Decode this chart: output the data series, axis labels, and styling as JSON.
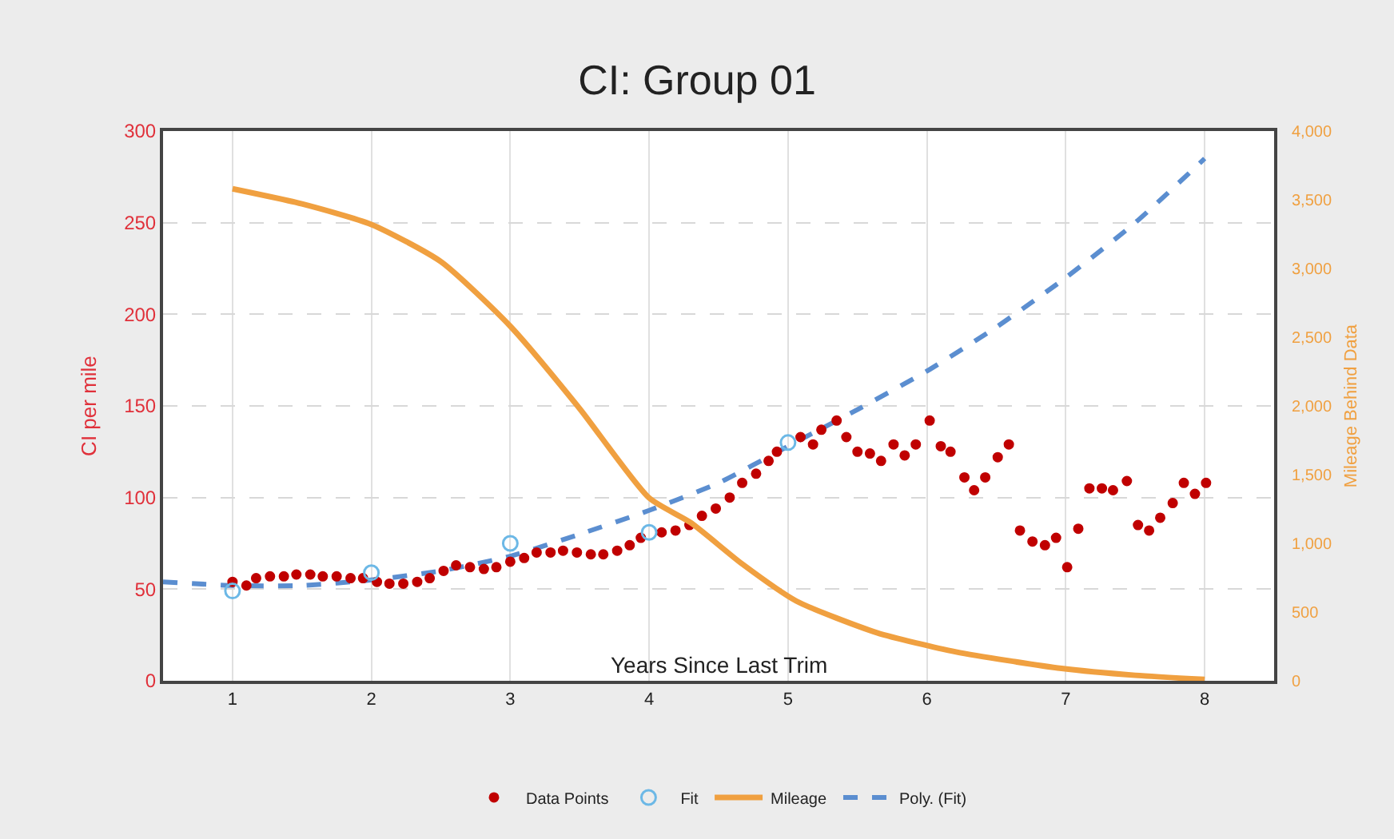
{
  "chart_data": {
    "type": "scatter",
    "title": "CI: Group 01",
    "xlabel": "Years Since Last Trim",
    "ylabel": "CI per mile",
    "y2label": "Mileage Behind Data",
    "xlim": [
      0.5,
      8.5
    ],
    "xticks": [
      1,
      2,
      3,
      4,
      5,
      6,
      7,
      8
    ],
    "ylim": [
      0,
      300
    ],
    "yticks": [
      0,
      50,
      100,
      150,
      200,
      250,
      300
    ],
    "y2lim": [
      0,
      4000
    ],
    "y2ticks": [
      {
        "value": 0,
        "label": "0"
      },
      {
        "value": 500,
        "label": "500"
      },
      {
        "value": 1000,
        "label": "1,000"
      },
      {
        "value": 1500,
        "label": "1,500"
      },
      {
        "value": 2000,
        "label": "2,000"
      },
      {
        "value": 2500,
        "label": "2,500"
      },
      {
        "value": 3000,
        "label": "3,000"
      },
      {
        "value": 3500,
        "label": "3,500"
      },
      {
        "value": 4000,
        "label": "4,000"
      }
    ],
    "grid": true,
    "legend": "bottom",
    "series": [
      {
        "name": "Data Points",
        "marker": "circle",
        "color": "#c00000",
        "x": [
          1.0,
          1.1,
          1.17,
          1.27,
          1.37,
          1.46,
          1.56,
          1.65,
          1.75,
          1.85,
          1.94,
          2.04,
          2.13,
          2.23,
          2.33,
          2.42,
          2.52,
          2.61,
          2.71,
          2.81,
          2.9,
          3.0,
          3.1,
          3.19,
          3.29,
          3.38,
          3.48,
          3.58,
          3.67,
          3.77,
          3.86,
          3.94,
          4.09,
          4.19,
          4.29,
          4.38,
          4.48,
          4.58,
          4.67,
          4.77,
          4.86,
          4.92,
          5.09,
          5.18,
          5.24,
          5.35,
          5.42,
          5.5,
          5.59,
          5.67,
          5.76,
          5.84,
          5.92,
          6.02,
          6.1,
          6.17,
          6.27,
          6.34,
          6.42,
          6.51,
          6.59,
          6.67,
          6.76,
          6.85,
          6.93,
          7.01,
          7.09,
          7.17,
          7.26,
          7.34,
          7.44,
          7.52,
          7.6,
          7.68,
          7.77,
          7.85,
          7.93,
          8.01
        ],
        "values": [
          54,
          52,
          56,
          57,
          57,
          58,
          58,
          57,
          57,
          56,
          56,
          54,
          53,
          53,
          54,
          56,
          60,
          63,
          62,
          61,
          62,
          65,
          67,
          70,
          70,
          71,
          70,
          69,
          69,
          71,
          74,
          78,
          81,
          82,
          85,
          90,
          94,
          100,
          108,
          113,
          120,
          125,
          133,
          129,
          137,
          142,
          133,
          125,
          124,
          120,
          129,
          123,
          129,
          142,
          128,
          125,
          111,
          104,
          111,
          122,
          129,
          82,
          76,
          74,
          78,
          62,
          83,
          105,
          105,
          104,
          109,
          85,
          82,
          89,
          97,
          108,
          102,
          108
        ]
      },
      {
        "name": "Fit",
        "type": "scatter",
        "marker": "open-circle",
        "color": "#6cb8e6",
        "x": [
          1,
          2,
          3,
          4,
          5
        ],
        "values": [
          49,
          59,
          75,
          81,
          130
        ]
      },
      {
        "name": "Mileage",
        "type": "line",
        "axis": "y2",
        "line_style": "solid",
        "color": "#f0a040",
        "x": [
          1,
          1.5,
          2,
          2.5,
          3,
          3.5,
          4,
          4.3,
          4.67,
          5.06,
          5.64,
          6.21,
          6.97,
          7.5,
          8
        ],
        "values": [
          3580,
          3470,
          3320,
          3050,
          2580,
          1980,
          1330,
          1150,
          850,
          580,
          350,
          210,
          90,
          40,
          10
        ]
      },
      {
        "name": "Poly. (Fit)",
        "type": "line",
        "line_style": "dashed",
        "color": "#5b8ed0",
        "x": [
          0.5,
          1,
          1.5,
          2,
          2.5,
          3,
          3.5,
          4,
          4.5,
          5,
          5.5,
          6,
          6.5,
          7,
          7.5,
          8
        ],
        "values": [
          54,
          52,
          52,
          55,
          60,
          68,
          80,
          93,
          108,
          128,
          148,
          169,
          193,
          220,
          250,
          285
        ]
      }
    ]
  }
}
